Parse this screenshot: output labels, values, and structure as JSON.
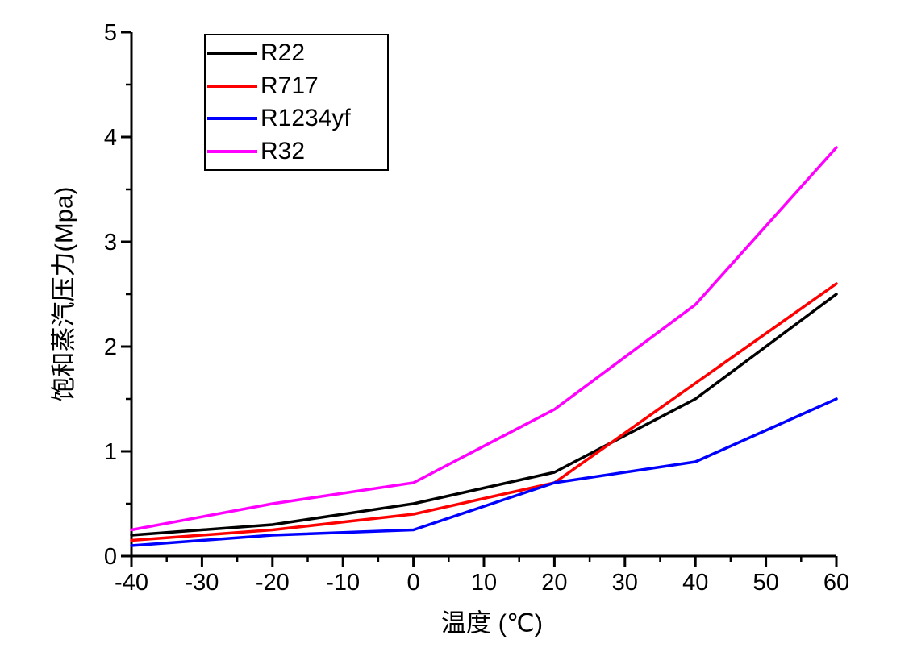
{
  "figure": {
    "background_color": "#ffffff",
    "axis_color": "#000000"
  },
  "legend": {
    "position": "top-left",
    "entries": [
      {
        "label": "R22",
        "color": "#000000"
      },
      {
        "label": "R717",
        "color": "#ff0000"
      },
      {
        "label": "R1234yf",
        "color": "#0000ff"
      },
      {
        "label": "R32",
        "color": "#ff00ff"
      }
    ]
  },
  "chart_data": {
    "type": "line",
    "title": "",
    "xlabel": "温度 (℃)",
    "ylabel": "饱和蒸汽压力(Mpa)",
    "x": [
      -40,
      -20,
      0,
      20,
      40,
      60
    ],
    "series": [
      {
        "name": "R22",
        "color": "#000000",
        "values": [
          0.2,
          0.3,
          0.5,
          0.8,
          1.5,
          2.5
        ]
      },
      {
        "name": "R717",
        "color": "#ff0000",
        "values": [
          0.15,
          0.25,
          0.4,
          0.7,
          1.65,
          2.6
        ]
      },
      {
        "name": "R1234yf",
        "color": "#0000ff",
        "values": [
          0.1,
          0.2,
          0.25,
          0.7,
          0.9,
          1.5
        ]
      },
      {
        "name": "R32",
        "color": "#ff00ff",
        "values": [
          0.25,
          0.5,
          0.7,
          1.4,
          2.4,
          3.9
        ]
      }
    ],
    "xlim": [
      -40,
      60
    ],
    "ylim": [
      0,
      5
    ],
    "xticks": [
      -40,
      -30,
      -20,
      -10,
      0,
      10,
      20,
      30,
      40,
      50,
      60
    ],
    "yticks": [
      0,
      1,
      2,
      3,
      4,
      5
    ],
    "minor_xtick_step": 5,
    "minor_ytick_step": 0.5,
    "grid": false,
    "legend_position": "top-left"
  }
}
